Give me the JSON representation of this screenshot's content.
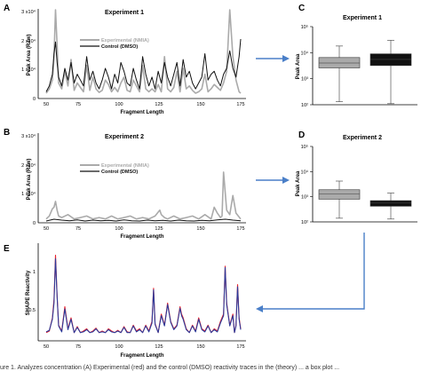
{
  "caption": "ure 1. Analyzes concentration (A) Experimental (red) and the control (DMSO) reactivity traces in the (theory) ... a box plot ... ",
  "chart_data": [
    {
      "panel": "A",
      "type": "line",
      "title": "Experiment 1",
      "title_color": "#e8202a",
      "xlabel": "Fragment Length",
      "ylabel": "Peak Area (Raw)",
      "xlim": [
        50,
        175
      ],
      "ylim": [
        0,
        30000
      ],
      "xticks": [
        "50",
        "75",
        "100",
        "125",
        "150",
        "175"
      ],
      "yticks": [
        "0",
        "1 x10⁴",
        "2 x10⁴",
        "3 x10⁴"
      ],
      "legend": [
        "Experimental (NMIA)",
        "Control (DMSO)"
      ],
      "legend_position": "top-center",
      "series": [
        {
          "name": "Experimental (NMIA)",
          "color": "#aaaaaa",
          "x": [
            50,
            52,
            54,
            55,
            56,
            57,
            58,
            60,
            62,
            64,
            66,
            68,
            70,
            72,
            74,
            76,
            78,
            80,
            82,
            84,
            86,
            88,
            90,
            92,
            94,
            96,
            98,
            100,
            102,
            104,
            106,
            108,
            110,
            112,
            114,
            116,
            118,
            120,
            122,
            124,
            126,
            128,
            130,
            132,
            134,
            136,
            138,
            140,
            142,
            144,
            146,
            148,
            150,
            152,
            154,
            156,
            158,
            160,
            162,
            164,
            166,
            168,
            170,
            172,
            174,
            175
          ],
          "values": [
            1500,
            3000,
            6000,
            14000,
            30000,
            18000,
            5000,
            3000,
            9000,
            4000,
            13000,
            2500,
            5000,
            3500,
            2000,
            11000,
            2500,
            7000,
            3000,
            1800,
            2500,
            6000,
            4500,
            2000,
            3500,
            2000,
            5000,
            7000,
            2500,
            2000,
            6000,
            4000,
            2000,
            11000,
            3000,
            2000,
            3000,
            2000,
            4500,
            2000,
            14000,
            3000,
            2000,
            3500,
            9000,
            2000,
            10000,
            3000,
            4000,
            2500,
            1500,
            2000,
            3000,
            8000,
            2000,
            3000,
            4500,
            3500,
            2500,
            5000,
            9000,
            30000,
            14000,
            6000,
            2000,
            1500
          ]
        },
        {
          "name": "Control (DMSO)",
          "color": "#111111",
          "x": [
            50,
            52,
            54,
            55,
            56,
            57,
            58,
            60,
            62,
            64,
            66,
            68,
            70,
            72,
            74,
            76,
            78,
            80,
            82,
            84,
            86,
            88,
            90,
            92,
            94,
            96,
            98,
            100,
            102,
            104,
            106,
            108,
            110,
            112,
            114,
            116,
            118,
            120,
            122,
            124,
            126,
            128,
            130,
            132,
            134,
            136,
            138,
            140,
            142,
            144,
            146,
            148,
            150,
            152,
            154,
            156,
            158,
            160,
            162,
            164,
            166,
            168,
            170,
            172,
            174,
            175
          ],
          "values": [
            2000,
            4000,
            8000,
            15000,
            19000,
            12000,
            7000,
            4000,
            10000,
            6000,
            12000,
            5000,
            8000,
            6000,
            4000,
            14000,
            6000,
            9000,
            5000,
            3000,
            6000,
            10000,
            7000,
            3000,
            8000,
            5000,
            12000,
            9000,
            5000,
            4000,
            10000,
            6000,
            3000,
            14000,
            8000,
            4000,
            7000,
            3000,
            9000,
            5000,
            12000,
            7000,
            4000,
            8000,
            12000,
            4000,
            13000,
            7000,
            9000,
            5000,
            3000,
            5000,
            7000,
            15000,
            6000,
            8000,
            9000,
            6000,
            4000,
            8000,
            10000,
            16000,
            10000,
            7000,
            14000,
            20000
          ]
        }
      ]
    },
    {
      "panel": "B",
      "type": "line",
      "title": "Experiment 2",
      "title_color": "#2b3a9a",
      "xlabel": "Fragment Length",
      "ylabel": "Peak Area (Raw)",
      "xlim": [
        50,
        175
      ],
      "ylim": [
        0,
        30000
      ],
      "xticks": [
        "50",
        "75",
        "100",
        "125",
        "150",
        "175"
      ],
      "yticks": [
        "0",
        "1 x10⁴",
        "2 x10⁴",
        "3 x10⁴"
      ],
      "legend": [
        "Experimental (NMIA)",
        "Control (DMSO)"
      ],
      "legend_position": "top-center",
      "series": [
        {
          "name": "Experimental (NMIA)",
          "color": "#aaaaaa",
          "x": [
            50,
            52,
            54,
            55,
            56,
            57,
            58,
            60,
            64,
            68,
            72,
            76,
            80,
            84,
            88,
            92,
            96,
            100,
            104,
            108,
            112,
            116,
            120,
            123,
            124,
            126,
            128,
            132,
            136,
            140,
            144,
            148,
            152,
            156,
            158,
            160,
            162,
            163,
            164,
            166,
            168,
            170,
            172,
            175
          ],
          "values": [
            1000,
            2000,
            4500,
            5000,
            7000,
            4000,
            2000,
            1500,
            2500,
            1000,
            1500,
            2000,
            1000,
            1500,
            1000,
            2000,
            1000,
            1500,
            2000,
            1000,
            1500,
            1000,
            2000,
            4000,
            2500,
            1500,
            1000,
            2000,
            1000,
            1500,
            2000,
            1000,
            2500,
            1000,
            5000,
            3000,
            1500,
            2000,
            17000,
            4000,
            2500,
            9000,
            3000,
            1000
          ]
        },
        {
          "name": "Control (DMSO)",
          "color": "#111111",
          "x": [
            50,
            55,
            60,
            65,
            70,
            75,
            80,
            85,
            90,
            95,
            100,
            105,
            110,
            115,
            120,
            125,
            130,
            135,
            140,
            145,
            150,
            155,
            160,
            165,
            170,
            175
          ],
          "values": [
            300,
            900,
            600,
            400,
            700,
            300,
            600,
            400,
            500,
            300,
            700,
            400,
            300,
            600,
            400,
            500,
            300,
            600,
            400,
            300,
            500,
            400,
            700,
            900,
            600,
            400
          ]
        }
      ]
    },
    {
      "panel": "C",
      "type": "box",
      "title": "Experiment 1",
      "title_color": "#e8202a",
      "ylabel": "Peak Area",
      "yscale": "log",
      "ylim": [
        100,
        100000
      ],
      "yticks": [
        "10²",
        "10³",
        "10⁴",
        "10⁵"
      ],
      "boxes": [
        {
          "name": "Experimental (NMIA)",
          "color": "#aaaaaa",
          "whisker_low": 130,
          "q1": 2600,
          "median": 4000,
          "q3": 6500,
          "whisker_high": 18000
        },
        {
          "name": "Control (DMSO)",
          "color": "#111111",
          "whisker_low": 110,
          "q1": 3200,
          "median": 5500,
          "q3": 9000,
          "whisker_high": 30000
        }
      ]
    },
    {
      "panel": "D",
      "type": "box",
      "title": "Experiment 2",
      "title_color": "#2b3a9a",
      "ylabel": "Peak Area",
      "yscale": "log",
      "ylim": [
        100,
        100000
      ],
      "yticks": [
        "10²",
        "10³",
        "10⁴",
        "10⁵"
      ],
      "boxes": [
        {
          "name": "Experimental (NMIA)",
          "color": "#aaaaaa",
          "whisker_low": 140,
          "q1": 800,
          "median": 1300,
          "q3": 1900,
          "whisker_high": 4200
        },
        {
          "name": "Control (DMSO)",
          "color": "#111111",
          "whisker_low": 130,
          "q1": 420,
          "median": 560,
          "q3": 700,
          "whisker_high": 1400
        }
      ]
    },
    {
      "panel": "E",
      "type": "line",
      "xlabel": "Fragment Length",
      "ylabel": "SHAPE Reactivity",
      "xlim": [
        50,
        175
      ],
      "ylim": [
        0,
        1.3
      ],
      "xticks": [
        "50",
        "75",
        "100",
        "125",
        "150",
        "175"
      ],
      "yticks": [
        "0.5",
        "1"
      ],
      "series": [
        {
          "name": "Experiment 1",
          "color": "#e8202a",
          "x": [
            50,
            52,
            54,
            55,
            56,
            57,
            58,
            60,
            62,
            64,
            66,
            68,
            70,
            72,
            74,
            76,
            78,
            80,
            82,
            84,
            86,
            88,
            90,
            92,
            94,
            96,
            98,
            100,
            102,
            104,
            106,
            108,
            110,
            112,
            114,
            116,
            118,
            119,
            120,
            122,
            124,
            126,
            128,
            130,
            132,
            134,
            136,
            137,
            138,
            140,
            142,
            144,
            146,
            148,
            150,
            152,
            154,
            156,
            158,
            160,
            162,
            164,
            165,
            166,
            168,
            170,
            171,
            172,
            173,
            174,
            175
          ],
          "values": [
            0.1,
            0.12,
            0.3,
            0.55,
            1.15,
            0.6,
            0.2,
            0.12,
            0.45,
            0.15,
            0.3,
            0.1,
            0.18,
            0.1,
            0.12,
            0.15,
            0.1,
            0.12,
            0.16,
            0.1,
            0.12,
            0.1,
            0.15,
            0.12,
            0.1,
            0.13,
            0.1,
            0.18,
            0.11,
            0.1,
            0.2,
            0.12,
            0.15,
            0.1,
            0.2,
            0.12,
            0.25,
            0.7,
            0.22,
            0.1,
            0.35,
            0.2,
            0.5,
            0.25,
            0.15,
            0.2,
            0.45,
            0.35,
            0.3,
            0.15,
            0.1,
            0.2,
            0.12,
            0.3,
            0.15,
            0.12,
            0.2,
            0.1,
            0.15,
            0.12,
            0.25,
            0.35,
            1.0,
            0.5,
            0.2,
            0.35,
            0.1,
            0.2,
            0.75,
            0.3,
            0.15
          ]
        },
        {
          "name": "Experiment 2",
          "color": "#2b3a9a",
          "x": [
            50,
            52,
            54,
            55,
            56,
            57,
            58,
            60,
            62,
            64,
            66,
            68,
            70,
            72,
            74,
            76,
            78,
            80,
            82,
            84,
            86,
            88,
            90,
            92,
            94,
            96,
            98,
            100,
            102,
            104,
            106,
            108,
            110,
            112,
            114,
            116,
            118,
            119,
            120,
            122,
            124,
            126,
            128,
            130,
            132,
            134,
            136,
            137,
            138,
            140,
            142,
            144,
            146,
            148,
            150,
            152,
            154,
            156,
            158,
            160,
            162,
            164,
            165,
            166,
            168,
            170,
            171,
            172,
            173,
            174,
            175
          ],
          "values": [
            0.11,
            0.13,
            0.28,
            0.5,
            1.1,
            0.58,
            0.19,
            0.11,
            0.42,
            0.14,
            0.28,
            0.1,
            0.17,
            0.1,
            0.11,
            0.14,
            0.1,
            0.11,
            0.15,
            0.1,
            0.11,
            0.1,
            0.14,
            0.11,
            0.1,
            0.12,
            0.1,
            0.17,
            0.1,
            0.1,
            0.19,
            0.11,
            0.14,
            0.1,
            0.19,
            0.11,
            0.23,
            0.68,
            0.21,
            0.1,
            0.33,
            0.19,
            0.48,
            0.24,
            0.14,
            0.19,
            0.43,
            0.33,
            0.28,
            0.14,
            0.1,
            0.19,
            0.11,
            0.28,
            0.14,
            0.11,
            0.19,
            0.1,
            0.14,
            0.11,
            0.23,
            0.33,
            0.98,
            0.48,
            0.19,
            0.33,
            0.1,
            0.19,
            0.72,
            0.28,
            0.14
          ]
        }
      ]
    }
  ]
}
